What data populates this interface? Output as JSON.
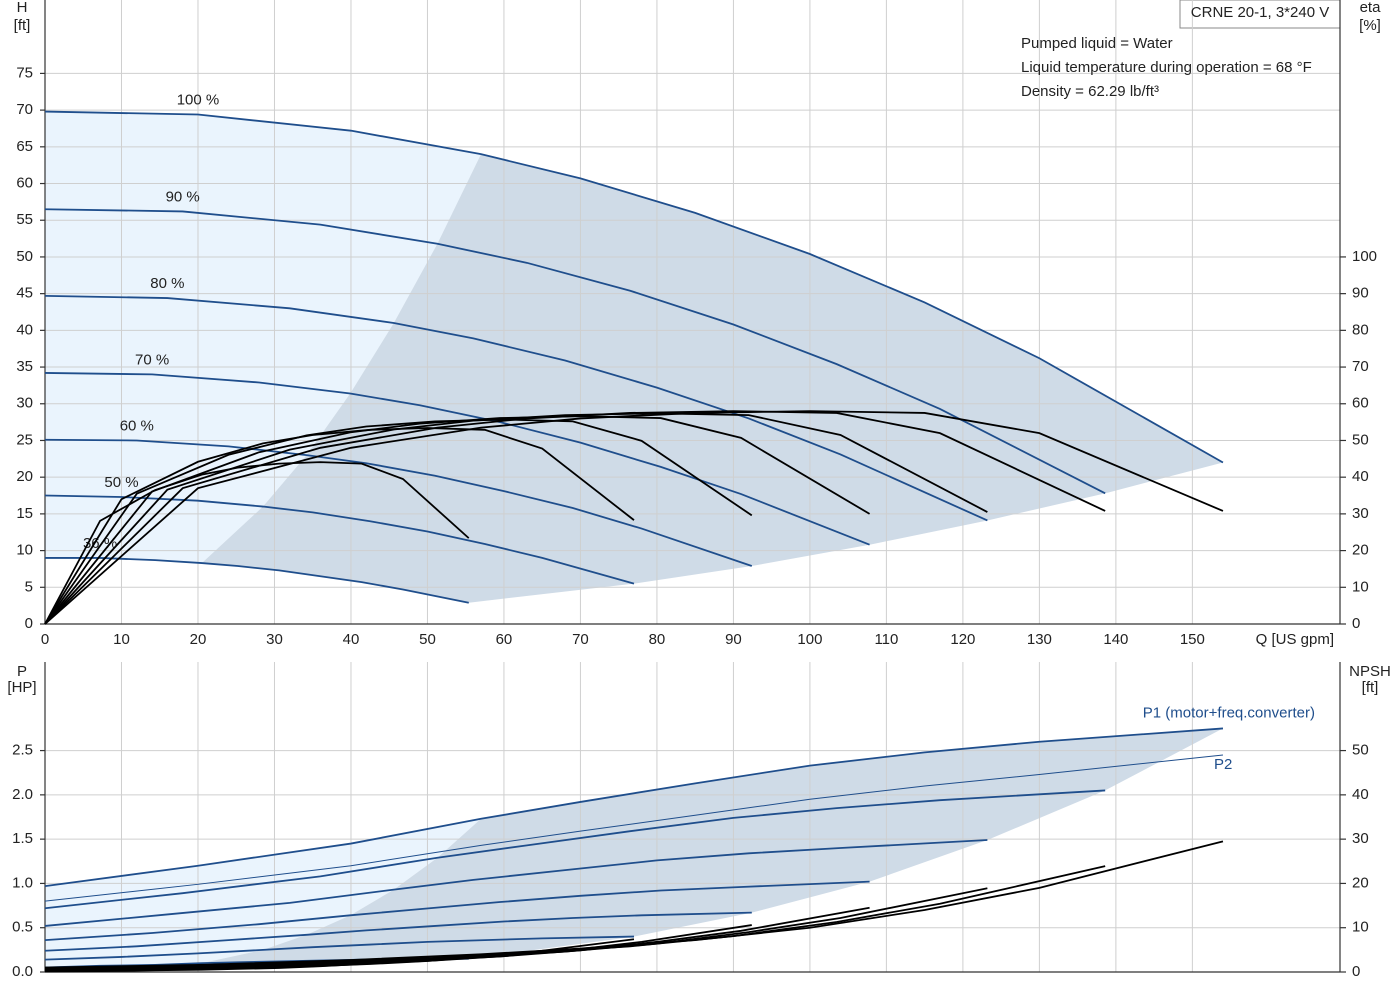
{
  "chart_data": [
    {
      "type": "line",
      "title": "CRNE 20-1, 3*240 V",
      "annotations": [
        "Pumped liquid = Water",
        "Liquid temperature during operation = 68 °F",
        "Density = 62.29 lb/ft³"
      ],
      "ylabel": "H",
      "yunit": "[ft]",
      "y2label": "eta",
      "y2unit": "[%]",
      "xlabel": "Q [US gpm]",
      "grid": true,
      "xlim": [
        0,
        169.3
      ],
      "xticks": [
        0,
        10,
        20,
        30,
        40,
        50,
        60,
        70,
        80,
        90,
        100,
        110,
        120,
        130,
        140,
        150
      ],
      "ylim": [
        0,
        85
      ],
      "yticks": [
        0,
        5,
        10,
        15,
        20,
        25,
        30,
        35,
        40,
        45,
        50,
        55,
        60,
        65,
        70,
        75
      ],
      "y2lim": [
        0,
        170
      ],
      "y2ticks": [
        0,
        10,
        20,
        30,
        40,
        50,
        60,
        70,
        80,
        90,
        100
      ],
      "series": [
        {
          "name": "100 %",
          "color": "#1f4e8c",
          "x": [
            0,
            20,
            40,
            57,
            70,
            85,
            100,
            115,
            130,
            154
          ],
          "values": [
            69.8,
            69.4,
            67.2,
            64.0,
            60.7,
            56.0,
            50.4,
            43.8,
            36.2,
            22.0
          ]
        },
        {
          "name": "90 %",
          "color": "#1f4e8c",
          "x": [
            0,
            18,
            36,
            51.3,
            63,
            76.5,
            90,
            103.5,
            117,
            138.6
          ],
          "values": [
            56.5,
            56.2,
            54.4,
            51.8,
            49.2,
            45.4,
            40.8,
            35.4,
            29.3,
            17.8
          ]
        },
        {
          "name": "80 %",
          "color": "#1f4e8c",
          "x": [
            0,
            16,
            32,
            45.6,
            56,
            68,
            80,
            92,
            104,
            123.2
          ],
          "values": [
            44.7,
            44.4,
            43.0,
            41.0,
            38.9,
            35.9,
            32.2,
            28.0,
            23.1,
            14.1
          ]
        },
        {
          "name": "70 %",
          "color": "#1f4e8c",
          "x": [
            0,
            14,
            28,
            39.9,
            49,
            59.5,
            70,
            80.5,
            91,
            107.8
          ],
          "values": [
            34.2,
            34.0,
            32.9,
            31.4,
            29.8,
            27.5,
            24.7,
            21.4,
            17.7,
            10.8
          ]
        },
        {
          "name": "60 %",
          "color": "#1f4e8c",
          "x": [
            0,
            12,
            24,
            34.2,
            42,
            51,
            60,
            69,
            78,
            92.4
          ],
          "values": [
            25.1,
            25.0,
            24.2,
            23.0,
            21.9,
            20.2,
            18.1,
            15.8,
            13.0,
            7.9
          ]
        },
        {
          "name": "50 %",
          "color": "#1f4e8c",
          "x": [
            0,
            10,
            20,
            28.5,
            35,
            42.5,
            50,
            57.5,
            65,
            77
          ],
          "values": [
            17.5,
            17.3,
            16.8,
            16.0,
            15.2,
            14.0,
            12.6,
            10.9,
            9.0,
            5.5
          ]
        },
        {
          "name": "36 %",
          "color": "#1f4e8c",
          "x": [
            0,
            7.2,
            14.4,
            20.5,
            25.2,
            30.6,
            36,
            41.4,
            46.8,
            55.4
          ],
          "values": [
            9.0,
            9.0,
            8.7,
            8.3,
            7.9,
            7.3,
            6.5,
            5.7,
            4.7,
            2.9
          ]
        },
        {
          "axis": "y2",
          "color": "#000000",
          "x": [
            0,
            20,
            40,
            57,
            70,
            85,
            100,
            115,
            130,
            154
          ],
          "values": [
            0,
            37,
            48,
            53.5,
            56,
            57.5,
            58,
            57.5,
            52,
            30.8
          ]
        },
        {
          "axis": "y2",
          "color": "#000000",
          "x": [
            0,
            18,
            36,
            51.3,
            63,
            76.5,
            90,
            103.5,
            117,
            138.6
          ],
          "values": [
            0,
            37,
            48,
            53.5,
            56,
            57.5,
            58,
            57.5,
            52,
            30.8
          ]
        },
        {
          "axis": "y2",
          "color": "#000000",
          "x": [
            0,
            16,
            32,
            45.6,
            56,
            68,
            80,
            92,
            104,
            123.2
          ],
          "values": [
            0,
            36.6,
            47.5,
            53,
            55.4,
            56.9,
            57.4,
            56.9,
            51.5,
            30.5
          ]
        },
        {
          "axis": "y2",
          "color": "#000000",
          "x": [
            0,
            14,
            28,
            39.9,
            49,
            59.5,
            70,
            80.5,
            91,
            107.8
          ],
          "values": [
            0,
            36.1,
            46.8,
            52.2,
            54.6,
            56.1,
            56.6,
            56.1,
            50.7,
            30.0
          ]
        },
        {
          "axis": "y2",
          "color": "#000000",
          "x": [
            0,
            12,
            24,
            34.2,
            42,
            51,
            60,
            69,
            78,
            92.4
          ],
          "values": [
            0,
            35.5,
            46.1,
            51.4,
            53.8,
            55.2,
            55.7,
            55.2,
            49.9,
            29.6
          ]
        },
        {
          "axis": "y2",
          "color": "#000000",
          "x": [
            0,
            10,
            20,
            28.5,
            35,
            42.5,
            50,
            57.5,
            65,
            77
          ],
          "values": [
            0,
            34.0,
            44.2,
            49.2,
            51.5,
            52.9,
            53.4,
            52.9,
            47.8,
            28.3
          ]
        },
        {
          "axis": "y2",
          "color": "#000000",
          "x": [
            0,
            7.2,
            14.4,
            20.5,
            25.2,
            30.6,
            36,
            41.4,
            46.8,
            55.4
          ],
          "values": [
            0,
            28.1,
            36.5,
            40.7,
            42.6,
            43.7,
            44.1,
            43.7,
            39.5,
            23.4
          ]
        }
      ]
    },
    {
      "type": "line",
      "ylabel": "P",
      "yunit": "[HP]",
      "y2label": "NPSH",
      "y2unit": "[ft]",
      "grid": true,
      "xlim": [
        0,
        169.3
      ],
      "xticks": [
        0,
        10,
        20,
        30,
        40,
        50,
        60,
        70,
        80,
        90,
        100,
        110,
        120,
        130,
        140,
        150
      ],
      "ylim": [
        0,
        3.5
      ],
      "yticks": [
        {
          "value": 0,
          "label": "0.0"
        },
        0.5,
        {
          "value": 1,
          "label": "1.0"
        },
        1.5,
        {
          "value": 2,
          "label": "2.0"
        },
        2.5
      ],
      "y2lim": [
        0,
        70
      ],
      "y2ticks": [
        0,
        10,
        20,
        30,
        40,
        50
      ],
      "series": [
        {
          "name": "P1 (motor+freq.converter)",
          "color": "#1f4e8c",
          "x": [
            0,
            20,
            40,
            57,
            70,
            85,
            100,
            115,
            130,
            154
          ],
          "values": [
            0.97,
            1.2,
            1.45,
            1.73,
            1.92,
            2.13,
            2.33,
            2.48,
            2.6,
            2.75
          ]
        },
        {
          "color": "#1f4e8c",
          "x": [
            0,
            18,
            36,
            51.3,
            63,
            76.5,
            90,
            103.5,
            117,
            138.6
          ],
          "values": [
            0.72,
            0.89,
            1.08,
            1.29,
            1.43,
            1.59,
            1.74,
            1.85,
            1.94,
            2.05
          ]
        },
        {
          "color": "#1f4e8c",
          "x": [
            0,
            16,
            32,
            45.6,
            56,
            68,
            80,
            92,
            104,
            123.2
          ],
          "values": [
            0.52,
            0.65,
            0.78,
            0.93,
            1.04,
            1.15,
            1.26,
            1.34,
            1.4,
            1.49
          ]
        },
        {
          "color": "#1f4e8c",
          "x": [
            0,
            14,
            28,
            39.9,
            49,
            59.5,
            70,
            80.5,
            91,
            107.8
          ],
          "values": [
            0.36,
            0.44,
            0.54,
            0.64,
            0.71,
            0.79,
            0.86,
            0.92,
            0.96,
            1.02
          ]
        },
        {
          "color": "#1f4e8c",
          "x": [
            0,
            12,
            24,
            34.2,
            42,
            51,
            60,
            69,
            78,
            92.4
          ],
          "values": [
            0.24,
            0.29,
            0.36,
            0.42,
            0.47,
            0.52,
            0.57,
            0.61,
            0.64,
            0.67
          ]
        },
        {
          "color": "#1f4e8c",
          "x": [
            0,
            10,
            20,
            28.5,
            35,
            42.5,
            50,
            57.5,
            65,
            77
          ],
          "values": [
            0.14,
            0.17,
            0.21,
            0.25,
            0.28,
            0.31,
            0.34,
            0.36,
            0.38,
            0.4
          ]
        },
        {
          "color": "#1f4e8c",
          "x": [
            0,
            7.2,
            14.4,
            20.5,
            25.2,
            30.6,
            36,
            41.4,
            46.8,
            55.4
          ],
          "values": [
            0.05,
            0.07,
            0.08,
            0.1,
            0.11,
            0.12,
            0.13,
            0.14,
            0.14,
            0.15
          ]
        },
        {
          "name": "P2",
          "color": "#1f4e8c",
          "x": [
            0,
            20,
            40,
            57,
            70,
            85,
            100,
            115,
            130,
            154
          ],
          "values": [
            0.8,
            0.99,
            1.2,
            1.43,
            1.59,
            1.77,
            1.95,
            2.1,
            2.23,
            2.45
          ]
        },
        {
          "axis": "y2",
          "color": "#000000",
          "x": [
            0,
            20,
            40,
            57,
            70,
            85,
            100,
            115,
            130,
            154
          ],
          "values": [
            1.0,
            1.6,
            2.7,
            4.0,
            5.3,
            7.2,
            10.0,
            14.0,
            19.0,
            29.5
          ]
        },
        {
          "axis": "y2",
          "color": "#000000",
          "x": [
            0,
            18,
            36,
            51.3,
            63,
            76.5,
            90,
            103.5,
            117,
            138.6
          ],
          "values": [
            0.8,
            1.3,
            2.2,
            3.2,
            4.3,
            5.8,
            8.1,
            11.3,
            15.4,
            23.9
          ]
        },
        {
          "axis": "y2",
          "color": "#000000",
          "x": [
            0,
            16,
            32,
            45.6,
            56,
            68,
            80,
            92,
            104,
            123.2
          ],
          "values": [
            0.6,
            1.0,
            1.7,
            2.6,
            3.4,
            4.6,
            6.4,
            9.0,
            12.2,
            18.9
          ]
        },
        {
          "axis": "y2",
          "color": "#000000",
          "x": [
            0,
            14,
            28,
            39.9,
            49,
            59.5,
            70,
            80.5,
            91,
            107.8
          ],
          "values": [
            0.5,
            0.8,
            1.3,
            2.0,
            2.6,
            3.5,
            4.9,
            6.9,
            9.3,
            14.5
          ]
        },
        {
          "axis": "y2",
          "color": "#000000",
          "x": [
            0,
            12,
            24,
            34.2,
            42,
            51,
            60,
            69,
            78,
            92.4
          ],
          "values": [
            0.4,
            0.6,
            1.0,
            1.4,
            1.9,
            2.6,
            3.6,
            5.0,
            6.8,
            10.6
          ]
        },
        {
          "axis": "y2",
          "color": "#000000",
          "x": [
            0,
            10,
            20,
            28.5,
            35,
            42.5,
            50,
            57.5,
            65,
            77
          ],
          "values": [
            0.3,
            0.4,
            0.7,
            1.0,
            1.3,
            1.8,
            2.5,
            3.5,
            4.8,
            7.4
          ]
        },
        {
          "axis": "y2",
          "color": "#000000",
          "x": [
            0,
            7.2,
            14.4,
            20.5,
            25.2,
            30.6,
            36,
            41.4,
            46.8,
            55.4
          ],
          "values": [
            0.1,
            0.2,
            0.4,
            0.5,
            0.7,
            0.9,
            1.3,
            1.8,
            2.5,
            3.8
          ]
        }
      ]
    }
  ]
}
